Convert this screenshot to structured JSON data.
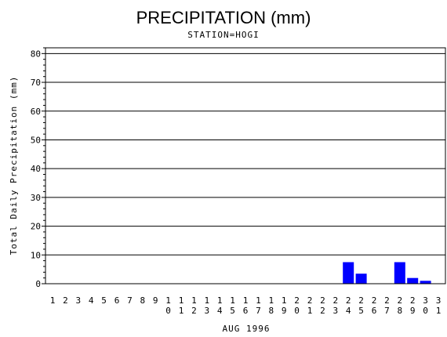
{
  "chart_data": {
    "type": "bar",
    "title": "PRECIPITATION (mm)",
    "subtitle": "STATION=HOGI",
    "xlabel": "AUG 1996",
    "ylabel": "Total Daily Precipitation (mm)",
    "ylim": [
      0,
      82
    ],
    "yticks": [
      0,
      10,
      20,
      30,
      40,
      50,
      60,
      70,
      80
    ],
    "grid": true,
    "bar_color": "#0000ff",
    "categories": [
      "1",
      "2",
      "3",
      "4",
      "5",
      "6",
      "7",
      "8",
      "9",
      "10",
      "11",
      "12",
      "13",
      "14",
      "15",
      "16",
      "17",
      "18",
      "19",
      "20",
      "21",
      "22",
      "23",
      "24",
      "25",
      "26",
      "27",
      "28",
      "29",
      "30",
      "31"
    ],
    "values": [
      0,
      0,
      0,
      0,
      0,
      0,
      0,
      0,
      0,
      0,
      0,
      0,
      0,
      0,
      0,
      0,
      0,
      0,
      0,
      0,
      0,
      0,
      0,
      7.5,
      3.5,
      0,
      0,
      7.5,
      2,
      1,
      0
    ]
  }
}
